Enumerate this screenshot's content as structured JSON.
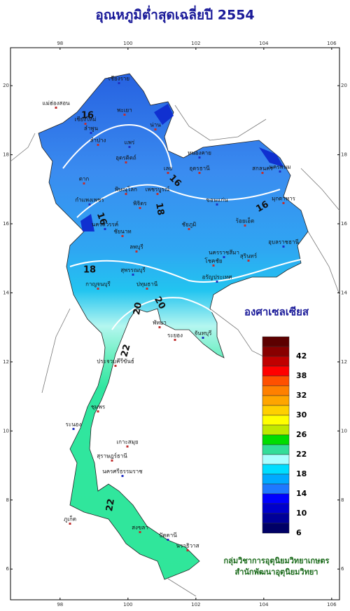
{
  "title": "อุณหภูมิต่ำสุดเฉลี่ยปี 2554",
  "map": {
    "xlim": [
      96.54,
      106.23
    ],
    "ylim": [
      5.11,
      21.1
    ],
    "xticks": [
      98,
      100,
      102,
      104,
      106
    ],
    "yticks": [
      6,
      8,
      10,
      12,
      14,
      16,
      18,
      20
    ],
    "contour_labels": [
      16,
      16,
      16,
      16,
      18,
      18,
      20,
      20,
      22,
      22
    ],
    "places": [
      "เชียงราย",
      "แม่ฮ่องสอน",
      "เชียงใหม่",
      "ลำพูน",
      "พะเยา",
      "น่าน",
      "แพร่",
      "ลำปาง",
      "อุตรดิตถ์",
      "หนองคาย",
      "อุดรธานี",
      "สกลนคร",
      "นครพนม",
      "มุกดาหาร",
      "เลย",
      "ขอนแก่น",
      "ตาก",
      "พิษณุโลก",
      "กำแพงเพชร",
      "พิจิตร",
      "เพชรบูรณ์",
      "นครสวรรค์",
      "ชัยภูมิ",
      "ร้อยเอ็ด",
      "อุบลราชธานี",
      "ลพบุรี",
      "สุรินทร์",
      "นครราชสีมา",
      "โชคชัย",
      "ชัยนาท",
      "สุพรรณบุรี",
      "กาญจนบุรี",
      "ปทุมธานี",
      "อรัญประเทศ",
      "พัทยา",
      "ระยอง",
      "จันทบุรี",
      "ประจวบคีรีขันธ์",
      "ชุมพร",
      "ระนอง",
      "เกาะสมุย",
      "สุราษฎร์ธานี",
      "นครศรีธรรมราช",
      "ภูเก็ต",
      "สงขลา",
      "ปัตตานี",
      "นราธิวาส"
    ]
  },
  "legend": {
    "title": "องศาเซลเซียส",
    "labels": [
      42,
      38,
      32,
      30,
      26,
      22,
      18,
      14,
      10,
      6
    ],
    "colors": [
      "#5c0000",
      "#880000",
      "#c00000",
      "#ff0000",
      "#ff5000",
      "#ff8000",
      "#ffa500",
      "#ffd000",
      "#ffff00",
      "#bfe800",
      "#00dd00",
      "#33dd99",
      "#aaffff",
      "#00ddff",
      "#00aaff",
      "#1e78ff",
      "#0000ff",
      "#0000cc",
      "#000099",
      "#000066"
    ]
  },
  "credit": [
    "กลุ่มวิชาการอุตุนิยมวิทยาเกษตร",
    "สำนักพัฒนาอุตุนิยมวิทยา"
  ]
}
